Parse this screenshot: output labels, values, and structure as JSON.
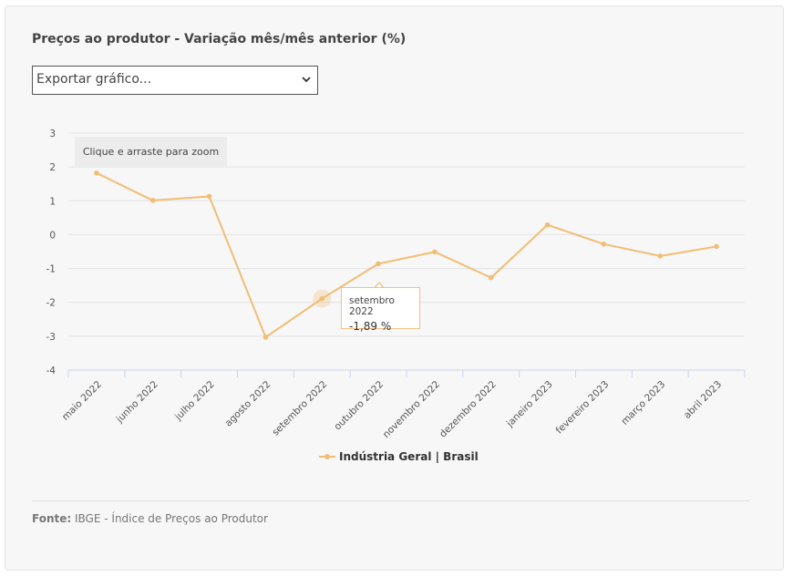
{
  "title": "Preços ao produtor - Variação mês/mês anterior (%)",
  "export_select": {
    "value": "Exportar gráfico..."
  },
  "zoom_hint": "Clique e arraste para zoom",
  "tooltip": {
    "category": "setembro 2022",
    "value": "-1,89 %"
  },
  "legend": {
    "label": "Indústria Geral | Brasil"
  },
  "footer": {
    "label": "Fonte:",
    "text": "IBGE - Índice de Preços ao Produtor"
  },
  "colors": {
    "series": "#f2bd74",
    "grid": "#e3e3e3",
    "axis": "#c9d6ee"
  },
  "chart_data": {
    "type": "line",
    "title": "Preços ao produtor - Variação mês/mês anterior (%)",
    "xlabel": "",
    "ylabel": "",
    "ylim": [
      -4,
      3
    ],
    "yticks": [
      "3",
      "2",
      "1",
      "0",
      "-1",
      "-2",
      "-3",
      "-4"
    ],
    "grid": true,
    "legend_position": "bottom",
    "categories": [
      "maio 2022",
      "junho 2022",
      "julho 2022",
      "agosto 2022",
      "setembro 2022",
      "outubro 2022",
      "novembro 2022",
      "dezembro 2022",
      "janeiro 2023",
      "fevereiro 2023",
      "março 2023",
      "abril 2023"
    ],
    "series": [
      {
        "name": "Indústria Geral | Brasil",
        "values": [
          1.82,
          1.01,
          1.13,
          -3.03,
          -1.89,
          -0.86,
          -0.51,
          -1.27,
          0.29,
          -0.28,
          -0.63,
          -0.35
        ]
      }
    ]
  }
}
